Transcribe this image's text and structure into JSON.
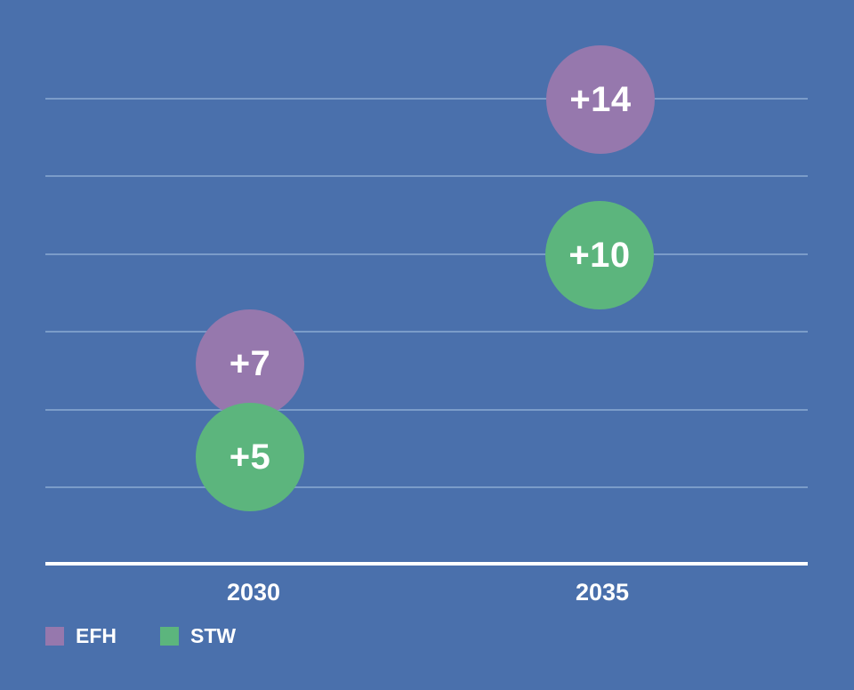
{
  "colors": {
    "background": "#4a70ac",
    "gridline": "#7b9cc9",
    "axis": "#ffffff",
    "text": "#ffffff",
    "efh": "#9678ad",
    "stw": "#5cb57d"
  },
  "x_axis": {
    "labels": [
      "2030",
      "2035"
    ]
  },
  "bubbles": [
    {
      "series": "EFH",
      "category": "2035",
      "value": 14,
      "label": "+14"
    },
    {
      "series": "STW",
      "category": "2035",
      "value": 10,
      "label": "+10"
    },
    {
      "series": "EFH",
      "category": "2030",
      "value": 7,
      "label": "+7"
    },
    {
      "series": "STW",
      "category": "2030",
      "value": 5,
      "label": "+5"
    }
  ],
  "legend": {
    "items": [
      {
        "label": "EFH",
        "color": "#9678ad"
      },
      {
        "label": "STW",
        "color": "#5cb57d"
      }
    ]
  },
  "chart_data": {
    "type": "scatter",
    "subtype": "bubble",
    "categories": [
      "2030",
      "2035"
    ],
    "series": [
      {
        "name": "EFH",
        "values": [
          7,
          14
        ],
        "color": "#9678ad"
      },
      {
        "name": "STW",
        "values": [
          5,
          10
        ],
        "color": "#5cb57d"
      }
    ],
    "data_labels": [
      [
        "+7",
        "+14"
      ],
      [
        "+5",
        "+10"
      ]
    ],
    "title": "",
    "xlabel": "",
    "ylabel": "",
    "grid": "horizontal",
    "gridline_count": 6,
    "legend_position": "bottom-left",
    "background": "#4a70ac"
  }
}
